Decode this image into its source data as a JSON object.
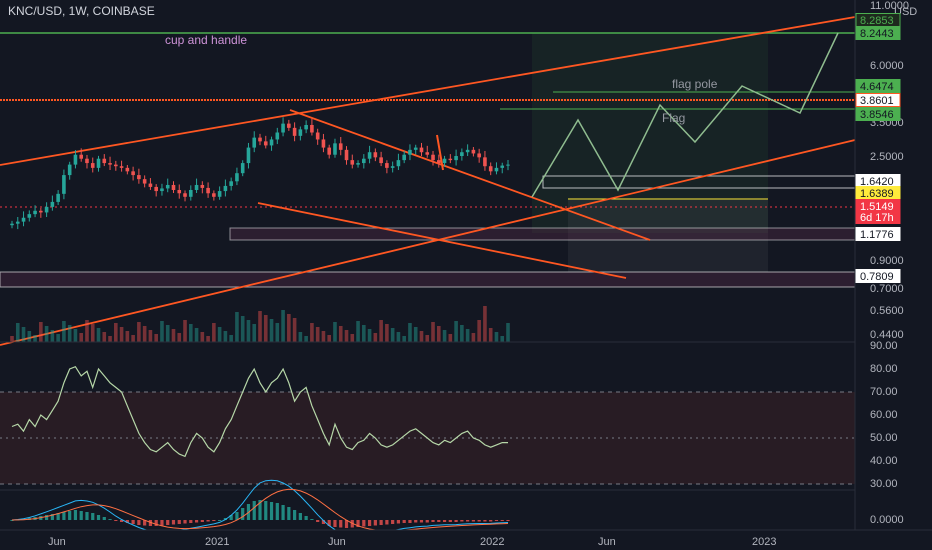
{
  "header": {
    "title": "KNC/USD, 1W, COINBASE"
  },
  "price_axis": {
    "unit": "USD",
    "ticks": [
      "11.0000",
      "6.0000",
      "3.5000",
      "2.5000",
      "0.9000",
      "0.7000",
      "0.5600",
      "0.4400"
    ]
  },
  "price_tags": [
    {
      "label": "8.2853",
      "bg": "#1e2a1e",
      "fg": "#4caf50",
      "border": "#4caf50"
    },
    {
      "label": "8.2443",
      "bg": "#4caf50",
      "fg": "#131722",
      "border": "#4caf50"
    },
    {
      "label": "4.6474",
      "bg": "#4caf50",
      "fg": "#131722",
      "border": "#4caf50"
    },
    {
      "label": "3.8601",
      "bg": "#ffffff",
      "fg": "#131722",
      "border": "#ff5722"
    },
    {
      "label": "3.8546",
      "bg": "#4caf50",
      "fg": "#131722",
      "border": "#4caf50"
    },
    {
      "label": "1.6420",
      "bg": "#ffffff",
      "fg": "#131722",
      "border": "#ffffff"
    },
    {
      "label": "1.6389",
      "bg": "#ffeb3b",
      "fg": "#131722",
      "border": "#ffeb3b"
    },
    {
      "label": "1.5149",
      "bg": "#f23645",
      "fg": "#ffffff",
      "border": "#f23645"
    },
    {
      "label": "6d 17h",
      "bg": "#f23645",
      "fg": "#ffffff",
      "border": "#f23645"
    },
    {
      "label": "1.1776",
      "bg": "#ffffff",
      "fg": "#131722",
      "border": "#ffffff"
    },
    {
      "label": "0.7809",
      "bg": "#ffffff",
      "fg": "#131722",
      "border": "#ffffff"
    }
  ],
  "rsi_axis": {
    "ticks": [
      "90.00",
      "80.00",
      "70.00",
      "60.00",
      "50.00",
      "40.00",
      "30.00"
    ]
  },
  "macd_axis": {
    "ticks": [
      "0.0000"
    ]
  },
  "time_axis": {
    "labels": [
      "Jun",
      "2021",
      "Jun",
      "2022",
      "Jun",
      "2023"
    ]
  },
  "annotations": {
    "cup_and_handle": "cup and handle",
    "flag_pole": "flag pole",
    "flag": "Flag"
  },
  "colors": {
    "background": "#131722",
    "up": "#26a69a",
    "down": "#ef5350",
    "trendline": "#ff5722",
    "green_line": "#4caf50",
    "projection": "#8fbc8f",
    "rsi_line": "#b6d7a8",
    "rsi_band": "#2a1f24"
  },
  "chart_data": [
    {
      "type": "candlestick",
      "symbol": "KNC/USD",
      "interval": "1W",
      "exchange": "COINBASE",
      "scale": "log",
      "ylim": [
        0.44,
        11.0
      ],
      "x_ticks": [
        "Jun",
        "2021",
        "Jun",
        "2022",
        "Jun",
        "2023"
      ],
      "close": [
        0.46,
        0.48,
        0.52,
        0.56,
        0.6,
        0.58,
        0.65,
        0.72,
        0.85,
        1.25,
        1.55,
        1.9,
        1.75,
        1.6,
        1.45,
        1.75,
        1.6,
        1.55,
        1.5,
        1.45,
        1.35,
        1.25,
        1.15,
        1.05,
        0.98,
        0.9,
        0.95,
        1.02,
        0.92,
        0.86,
        0.8,
        0.92,
        1.02,
        0.96,
        0.86,
        0.8,
        0.9,
        1.0,
        1.1,
        1.3,
        1.6,
        2.2,
        2.7,
        2.5,
        2.3,
        2.6,
        3.0,
        3.6,
        3.3,
        2.8,
        3.2,
        3.5,
        3.0,
        2.6,
        2.2,
        1.9,
        2.4,
        2.1,
        1.7,
        1.55,
        1.6,
        1.75,
        2.0,
        1.8,
        1.6,
        1.45,
        1.5,
        1.7,
        1.9,
        2.1,
        2.2,
        2.0,
        1.9,
        1.7,
        1.6,
        1.75,
        1.7,
        1.85,
        2.0,
        2.1,
        1.95,
        1.8,
        1.5,
        1.35,
        1.45,
        1.52,
        1.55
      ],
      "volume_note": "weekly volume histogram shown beneath price",
      "levels": [
        8.2853,
        8.2443,
        4.6474,
        3.8601,
        3.8546,
        1.642,
        1.6389,
        1.5149,
        1.1776,
        0.7809
      ]
    },
    {
      "type": "line",
      "name": "RSI",
      "ylim": [
        25,
        90
      ],
      "bands": [
        30,
        50,
        70
      ],
      "values": [
        55,
        56,
        53,
        58,
        55,
        60,
        58,
        62,
        66,
        74,
        80,
        81,
        77,
        79,
        72,
        80,
        77,
        74,
        72,
        70,
        64,
        58,
        52,
        48,
        45,
        44,
        46,
        48,
        45,
        43,
        42,
        48,
        52,
        50,
        46,
        44,
        48,
        54,
        58,
        64,
        70,
        76,
        80,
        74,
        70,
        74,
        76,
        80,
        74,
        66,
        70,
        72,
        64,
        58,
        52,
        47,
        56,
        50,
        46,
        45,
        48,
        49,
        52,
        50,
        47,
        46,
        47,
        49,
        51,
        53,
        54,
        52,
        50,
        48,
        47,
        49,
        48,
        50,
        52,
        53,
        50,
        49,
        47,
        46,
        47,
        48,
        48
      ]
    },
    {
      "type": "bar",
      "name": "MACD histogram",
      "ylim": [
        -0.05,
        0.05
      ],
      "values": [
        0.0,
        0.001,
        0.002,
        0.004,
        0.006,
        0.008,
        0.01,
        0.012,
        0.014,
        0.016,
        0.018,
        0.02,
        0.018,
        0.016,
        0.014,
        0.01,
        0.006,
        0.002,
        -0.002,
        -0.004,
        -0.006,
        -0.008,
        -0.01,
        -0.011,
        -0.012,
        -0.012,
        -0.011,
        -0.01,
        -0.009,
        -0.008,
        -0.007,
        -0.006,
        -0.005,
        -0.004,
        -0.003,
        -0.002,
        0.0,
        0.004,
        0.01,
        0.016,
        0.024,
        0.032,
        0.038,
        0.04,
        0.038,
        0.036,
        0.034,
        0.03,
        0.026,
        0.02,
        0.014,
        0.008,
        0.002,
        -0.004,
        -0.008,
        -0.012,
        -0.014,
        -0.015,
        -0.016,
        -0.015,
        -0.014,
        -0.013,
        -0.012,
        -0.011,
        -0.01,
        -0.009,
        -0.008,
        -0.007,
        -0.006,
        -0.006,
        -0.005,
        -0.005,
        -0.005,
        -0.004,
        -0.004,
        -0.004,
        -0.004,
        -0.004,
        -0.003,
        -0.003,
        -0.003,
        -0.003,
        -0.003,
        -0.003,
        -0.002,
        -0.002,
        -0.002
      ]
    }
  ]
}
